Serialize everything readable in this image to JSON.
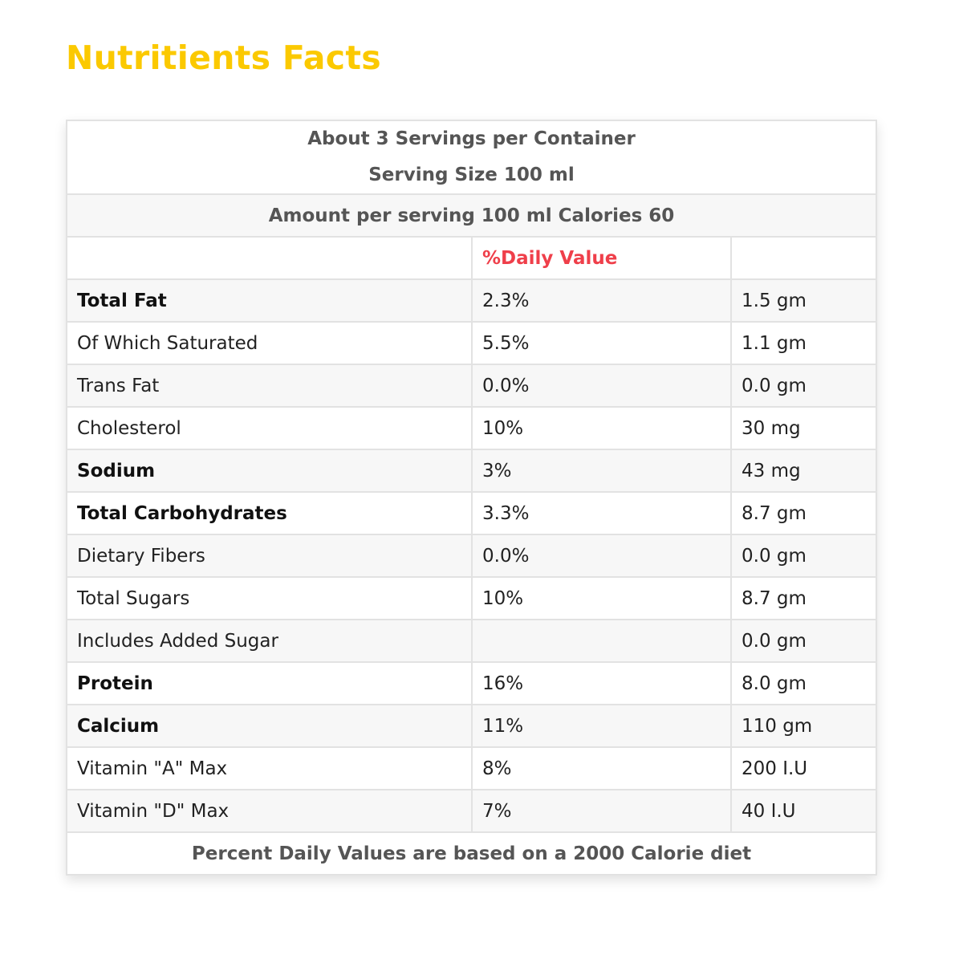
{
  "title": "Nutritients Facts",
  "header": {
    "servings": "About 3 Servings per Container",
    "serving_size": "Serving Size 100 ml",
    "amount": "Amount per serving 100 ml Calories 60",
    "dv_label": "%Daily Value"
  },
  "rows": [
    {
      "name": "Total Fat",
      "dv": "2.3%",
      "amount": "1.5 gm",
      "bold": true
    },
    {
      "name": "Of Which Saturated",
      "dv": "5.5%",
      "amount": "1.1 gm",
      "bold": false
    },
    {
      "name": "Trans Fat",
      "dv": "0.0%",
      "amount": "0.0 gm",
      "bold": false
    },
    {
      "name": "Cholesterol",
      "dv": "10%",
      "amount": "30 mg",
      "bold": false
    },
    {
      "name": "Sodium",
      "dv": "3%",
      "amount": "43 mg",
      "bold": true
    },
    {
      "name": "Total Carbohydrates",
      "dv": "3.3%",
      "amount": "8.7 gm",
      "bold": true
    },
    {
      "name": "Dietary Fibers",
      "dv": "0.0%",
      "amount": "0.0 gm",
      "bold": false
    },
    {
      "name": "Total Sugars",
      "dv": "10%",
      "amount": "8.7 gm",
      "bold": false
    },
    {
      "name": "Includes Added Sugar",
      "dv": "",
      "amount": "0.0 gm",
      "bold": false
    },
    {
      "name": "Protein",
      "dv": "16%",
      "amount": "8.0 gm",
      "bold": true
    },
    {
      "name": "Calcium",
      "dv": "11%",
      "amount": "110 gm",
      "bold": true
    },
    {
      "name": "Vitamin \"A\" Max",
      "dv": "8%",
      "amount": "200 I.U",
      "bold": false
    },
    {
      "name": "Vitamin \"D\" Max",
      "dv": "7%",
      "amount": "40 I.U",
      "bold": false
    }
  ],
  "footer": "Percent Daily Values are based on a 2000 Calorie diet",
  "colors": {
    "title": "#fbc900",
    "dv_label": "#ef3f4a"
  }
}
